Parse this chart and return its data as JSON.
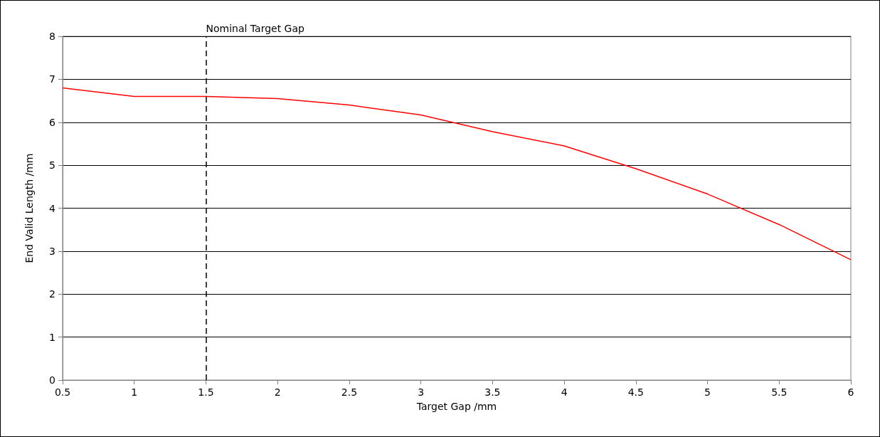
{
  "chart_data": {
    "type": "line",
    "xlabel": "Target Gap /mm",
    "ylabel": "End Valid Length /mm",
    "x": [
      0.5,
      1,
      1.5,
      2,
      2.5,
      3,
      3.5,
      4,
      4.5,
      5,
      5.5,
      6
    ],
    "series": [
      {
        "color": "#ff0000",
        "values": [
          6.8,
          6.6,
          6.6,
          6.55,
          6.4,
          6.17,
          5.78,
          5.45,
          4.92,
          4.33,
          3.62,
          2.8
        ]
      }
    ],
    "xlim": [
      0.5,
      6
    ],
    "xticks": [
      0.5,
      1,
      1.5,
      2,
      2.5,
      3,
      3.5,
      4,
      4.5,
      5,
      5.5,
      6
    ],
    "ylim": [
      0,
      8
    ],
    "yticks": [
      0,
      1,
      2,
      3,
      4,
      5,
      6,
      7,
      8
    ],
    "grid": "y",
    "marker": "none",
    "line_style": "solid",
    "ref_lines": [
      {
        "axis": "x",
        "value": 1.5,
        "label": "Nominal Target Gap",
        "color": "#000000",
        "line_style": "dashed"
      }
    ]
  }
}
